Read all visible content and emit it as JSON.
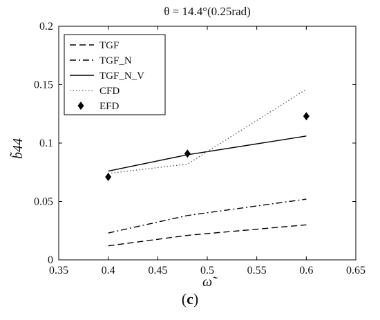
{
  "chart_data": {
    "type": "line",
    "title": "θ = 14.4°(0.25rad)",
    "xlabel": "ω̃",
    "ylabel": "b̃44",
    "xlim": [
      0.35,
      0.65
    ],
    "ylim": [
      0,
      0.2
    ],
    "xticks": [
      "0.35",
      "0.4",
      "0.45",
      "0.5",
      "0.55",
      "0.6",
      "0.65"
    ],
    "yticks": [
      "0",
      "0.05",
      "0.1",
      "0.15",
      "0.2"
    ],
    "grid": false,
    "legend_position": "top-left",
    "series": [
      {
        "name": "TGF",
        "style": "dashed",
        "color": "#000000",
        "x": [
          0.4,
          0.48,
          0.6
        ],
        "y": [
          0.012,
          0.021,
          0.03
        ]
      },
      {
        "name": "TGF_N",
        "style": "dash-dot",
        "color": "#000000",
        "x": [
          0.4,
          0.48,
          0.6
        ],
        "y": [
          0.023,
          0.038,
          0.052
        ]
      },
      {
        "name": "TGF_N_V",
        "style": "solid",
        "color": "#000000",
        "x": [
          0.4,
          0.48,
          0.6
        ],
        "y": [
          0.076,
          0.09,
          0.106
        ]
      },
      {
        "name": "CFD",
        "style": "dotted",
        "color": "#555555",
        "x": [
          0.4,
          0.48,
          0.6
        ],
        "y": [
          0.074,
          0.082,
          0.146
        ]
      },
      {
        "name": "EFD",
        "style": "diamond-markers",
        "color": "#000000",
        "x": [
          0.4,
          0.48,
          0.6
        ],
        "y": [
          0.071,
          0.091,
          0.123
        ]
      }
    ]
  },
  "caption": {
    "open": "(",
    "letter": "c",
    "close": ")"
  }
}
